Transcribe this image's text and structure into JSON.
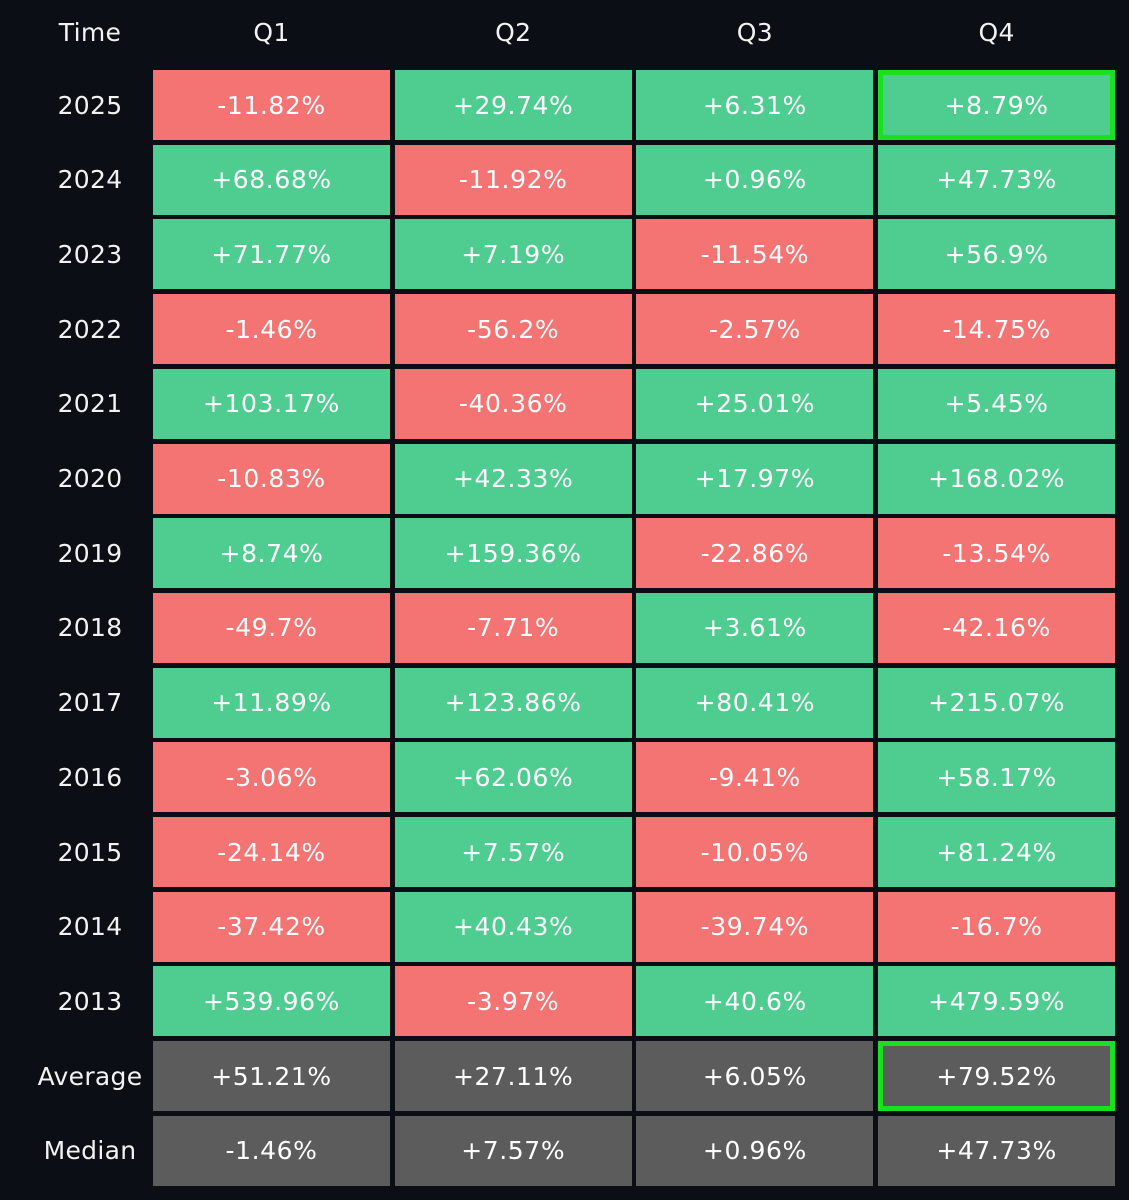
{
  "chart_data": {
    "type": "table",
    "title": "",
    "columns": [
      "Q1",
      "Q2",
      "Q3",
      "Q4"
    ],
    "corner_label": "Time",
    "rows": [
      {
        "label": "2025",
        "values": [
          "-11.82%",
          "+29.74%",
          "+6.31%",
          "+8.79%"
        ],
        "highlight": [
          false,
          false,
          false,
          true
        ]
      },
      {
        "label": "2024",
        "values": [
          "+68.68%",
          "-11.92%",
          "+0.96%",
          "+47.73%"
        ],
        "highlight": [
          false,
          false,
          false,
          false
        ]
      },
      {
        "label": "2023",
        "values": [
          "+71.77%",
          "+7.19%",
          "-11.54%",
          "+56.9%"
        ],
        "highlight": [
          false,
          false,
          false,
          false
        ]
      },
      {
        "label": "2022",
        "values": [
          "-1.46%",
          "-56.2%",
          "-2.57%",
          "-14.75%"
        ],
        "highlight": [
          false,
          false,
          false,
          false
        ]
      },
      {
        "label": "2021",
        "values": [
          "+103.17%",
          "-40.36%",
          "+25.01%",
          "+5.45%"
        ],
        "highlight": [
          false,
          false,
          false,
          false
        ]
      },
      {
        "label": "2020",
        "values": [
          "-10.83%",
          "+42.33%",
          "+17.97%",
          "+168.02%"
        ],
        "highlight": [
          false,
          false,
          false,
          false
        ]
      },
      {
        "label": "2019",
        "values": [
          "+8.74%",
          "+159.36%",
          "-22.86%",
          "-13.54%"
        ],
        "highlight": [
          false,
          false,
          false,
          false
        ]
      },
      {
        "label": "2018",
        "values": [
          "-49.7%",
          "-7.71%",
          "+3.61%",
          "-42.16%"
        ],
        "highlight": [
          false,
          false,
          false,
          false
        ]
      },
      {
        "label": "2017",
        "values": [
          "+11.89%",
          "+123.86%",
          "+80.41%",
          "+215.07%"
        ],
        "highlight": [
          false,
          false,
          false,
          false
        ]
      },
      {
        "label": "2016",
        "values": [
          "-3.06%",
          "+62.06%",
          "-9.41%",
          "+58.17%"
        ],
        "highlight": [
          false,
          false,
          false,
          false
        ]
      },
      {
        "label": "2015",
        "values": [
          "-24.14%",
          "+7.57%",
          "-10.05%",
          "+81.24%"
        ],
        "highlight": [
          false,
          false,
          false,
          false
        ]
      },
      {
        "label": "2014",
        "values": [
          "-37.42%",
          "+40.43%",
          "-39.74%",
          "-16.7%"
        ],
        "highlight": [
          false,
          false,
          false,
          false
        ]
      },
      {
        "label": "2013",
        "values": [
          "+539.96%",
          "-3.97%",
          "+40.6%",
          "+479.59%"
        ],
        "highlight": [
          false,
          false,
          false,
          false
        ]
      }
    ],
    "summary_rows": [
      {
        "label": "Average",
        "values": [
          "+51.21%",
          "+27.11%",
          "+6.05%",
          "+79.52%"
        ],
        "highlight": [
          false,
          false,
          false,
          true
        ]
      },
      {
        "label": "Median",
        "values": [
          "-1.46%",
          "+7.57%",
          "+0.96%",
          "+47.73%"
        ],
        "highlight": [
          false,
          false,
          false,
          false
        ]
      }
    ]
  },
  "colors": {
    "background": "#0b0e14",
    "positive": "#4fcc8f",
    "negative": "#f47373",
    "summary": "#5c5c5c",
    "highlight_border": "#19e021"
  }
}
